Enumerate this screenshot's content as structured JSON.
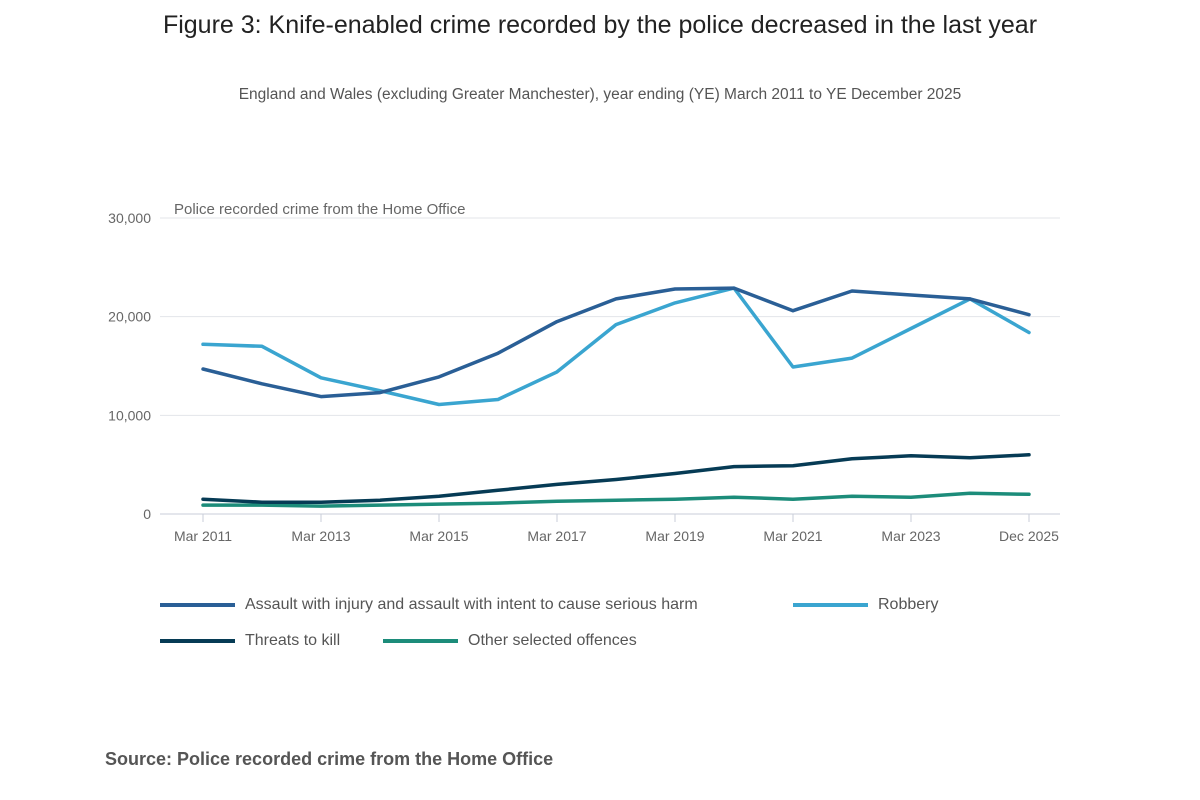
{
  "chart_data": {
    "type": "line",
    "title": "Figure 3: Knife-enabled crime recorded by the police decreased in the last year",
    "subtitle": "England and Wales (excluding Greater Manchester), year ending (YE) March 2011 to YE December 2025",
    "ylabel": "Police recorded crime from the Home Office",
    "xlabel": "",
    "ylim": [
      0,
      30000
    ],
    "yticks": [
      "0",
      "10,000",
      "20,000",
      "30,000"
    ],
    "ytick_values": [
      0,
      10000,
      20000,
      30000
    ],
    "categories": [
      "Mar 2011",
      "Mar 2012",
      "Mar 2013",
      "Mar 2014",
      "Mar 2015",
      "Mar 2016",
      "Mar 2017",
      "Mar 2018",
      "Mar 2019",
      "Mar 2020",
      "Mar 2021",
      "Mar 2022",
      "Mar 2023",
      "Mar 2024",
      "Dec 2025"
    ],
    "xtick_labels": [
      "Mar 2011",
      "Mar 2013",
      "Mar 2015",
      "Mar 2017",
      "Mar 2019",
      "Mar 2021",
      "Mar 2023",
      "Dec 2025"
    ],
    "xtick_indices": [
      0,
      2,
      4,
      6,
      8,
      10,
      12,
      14
    ],
    "grid": true,
    "legend_position": "bottom",
    "series": [
      {
        "name": "Assault with injury and assault with intent to cause serious harm",
        "color": "#2a5f96",
        "values": [
          14700,
          13200,
          11900,
          12300,
          13900,
          16300,
          19500,
          21800,
          22800,
          22900,
          20600,
          22600,
          22200,
          21800,
          20200
        ]
      },
      {
        "name": "Robbery",
        "color": "#3aa5d0",
        "values": [
          17200,
          17000,
          13800,
          12500,
          11100,
          11600,
          14400,
          19200,
          21400,
          22900,
          14900,
          15800,
          18800,
          21800,
          18400
        ]
      },
      {
        "name": "Threats to kill",
        "color": "#063b55",
        "values": [
          1500,
          1200,
          1200,
          1400,
          1800,
          2400,
          3000,
          3500,
          4100,
          4800,
          4900,
          5600,
          5900,
          5700,
          6000
        ]
      },
      {
        "name": "Other selected offences",
        "color": "#1c8c7a",
        "values": [
          900,
          900,
          800,
          900,
          1000,
          1100,
          1300,
          1400,
          1500,
          1700,
          1500,
          1800,
          1700,
          2100,
          2000
        ]
      }
    ]
  },
  "source": "Source: Police recorded crime from the Home Office"
}
